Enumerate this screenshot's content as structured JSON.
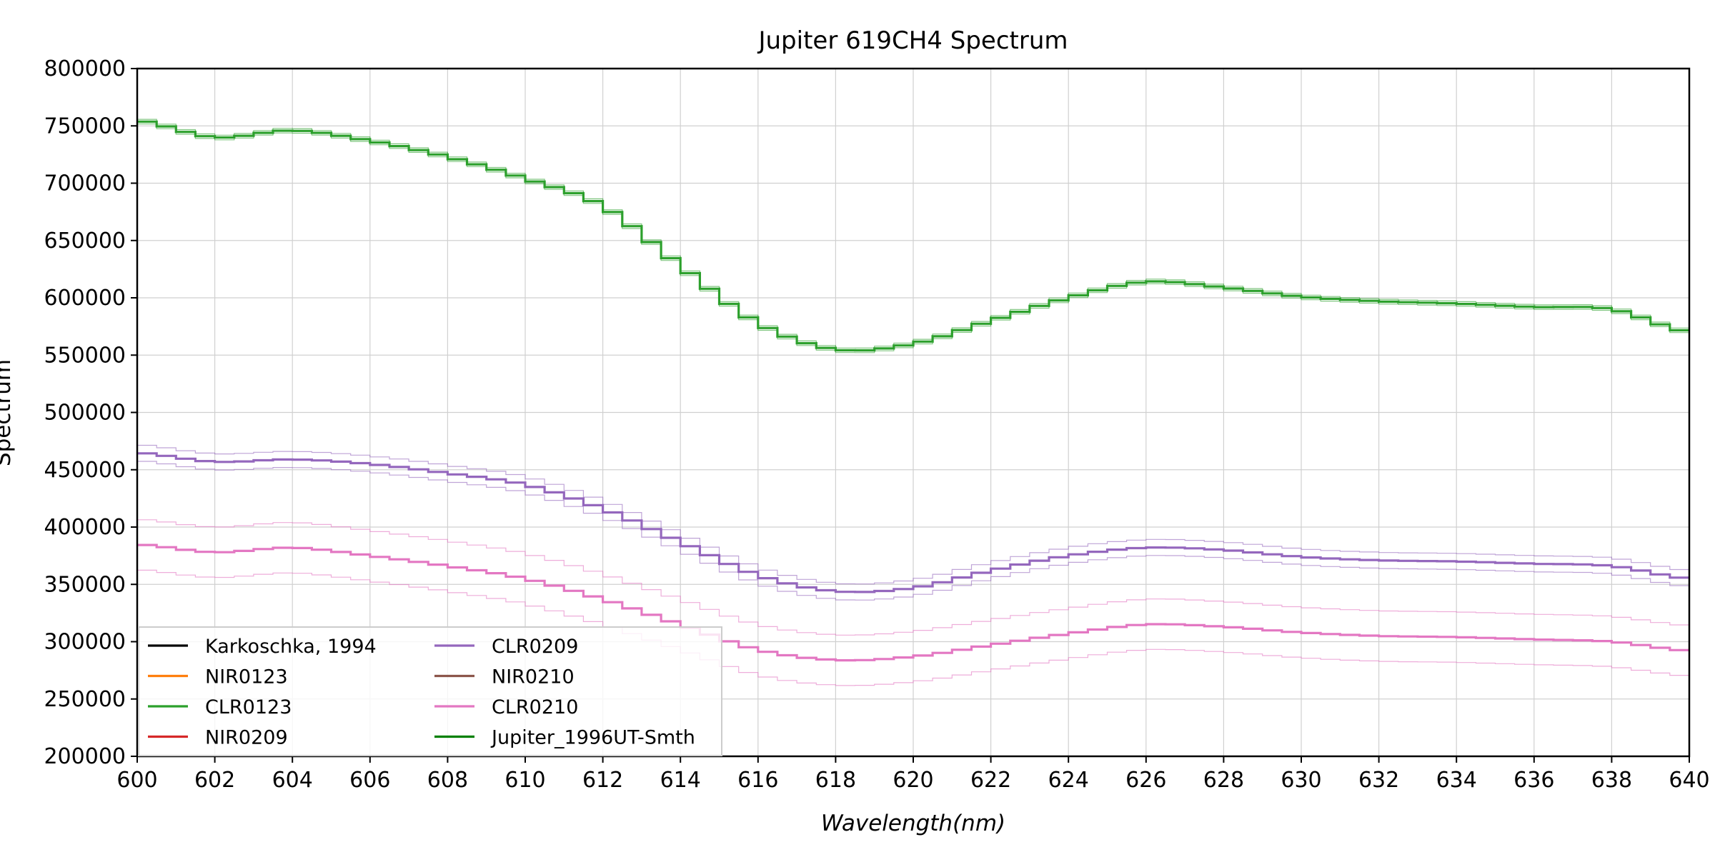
{
  "chart_data": {
    "type": "line",
    "title": "Jupiter 619CH4 Spectrum",
    "xlabel": "Wavelength(nm)",
    "ylabel": "Spectrum",
    "xlim": [
      600,
      640
    ],
    "ylim": [
      200000,
      800000
    ],
    "xticks": [
      "600",
      "602",
      "604",
      "606",
      "608",
      "610",
      "612",
      "614",
      "616",
      "618",
      "620",
      "622",
      "624",
      "626",
      "628",
      "630",
      "632",
      "634",
      "636",
      "638",
      "640"
    ],
    "yticks": [
      "200000",
      "250000",
      "300000",
      "350000",
      "400000",
      "450000",
      "500000",
      "550000",
      "600000",
      "650000",
      "700000",
      "750000",
      "800000"
    ],
    "grid": true,
    "legend_position": "lower-left",
    "step_style": "steps-post, 0.5 nm bins",
    "legend": [
      {
        "label": "Karkoschka, 1994",
        "color": "#000000"
      },
      {
        "label": "NIR0123",
        "color": "#ff7f0e"
      },
      {
        "label": "CLR0123",
        "color": "#2ca02c"
      },
      {
        "label": "NIR0209",
        "color": "#d62728"
      },
      {
        "label": "CLR0209",
        "color": "#9467bd"
      },
      {
        "label": "NIR0210",
        "color": "#8c564b"
      },
      {
        "label": "CLR0210",
        "color": "#e377c2"
      },
      {
        "label": "Jupiter_1996UT-Smth",
        "color": "#008000"
      }
    ],
    "x": [
      600,
      602,
      604,
      606,
      608,
      610,
      612,
      614,
      616,
      618,
      620,
      622,
      624,
      626,
      628,
      630,
      632,
      634,
      636,
      638,
      640
    ],
    "series": [
      {
        "name": "CLR0123",
        "color": "#2ca02c",
        "band_offset": 2000,
        "values": [
          755000,
          740000,
          746000,
          737000,
          723000,
          704000,
          680000,
          628000,
          578000,
          555000,
          560000,
          580000,
          600000,
          614000,
          609000,
          601000,
          597000,
          595000,
          592000,
          590000,
          570000
        ]
      },
      {
        "name": "CLR0209",
        "color": "#9467bd",
        "band_offset": 7000,
        "values": [
          465000,
          457000,
          459000,
          455000,
          447000,
          437000,
          416000,
          387000,
          358000,
          344000,
          347000,
          362000,
          375000,
          382000,
          380000,
          374000,
          371000,
          370000,
          368000,
          366000,
          355000
        ]
      },
      {
        "name": "CLR0210",
        "color": "#e377c2",
        "band_offset": 22000,
        "values": [
          385000,
          378000,
          382000,
          375000,
          366000,
          355000,
          337000,
          315000,
          293000,
          284000,
          287000,
          297000,
          307000,
          315000,
          313000,
          308000,
          305000,
          304000,
          302000,
          300000,
          292000
        ]
      }
    ]
  }
}
